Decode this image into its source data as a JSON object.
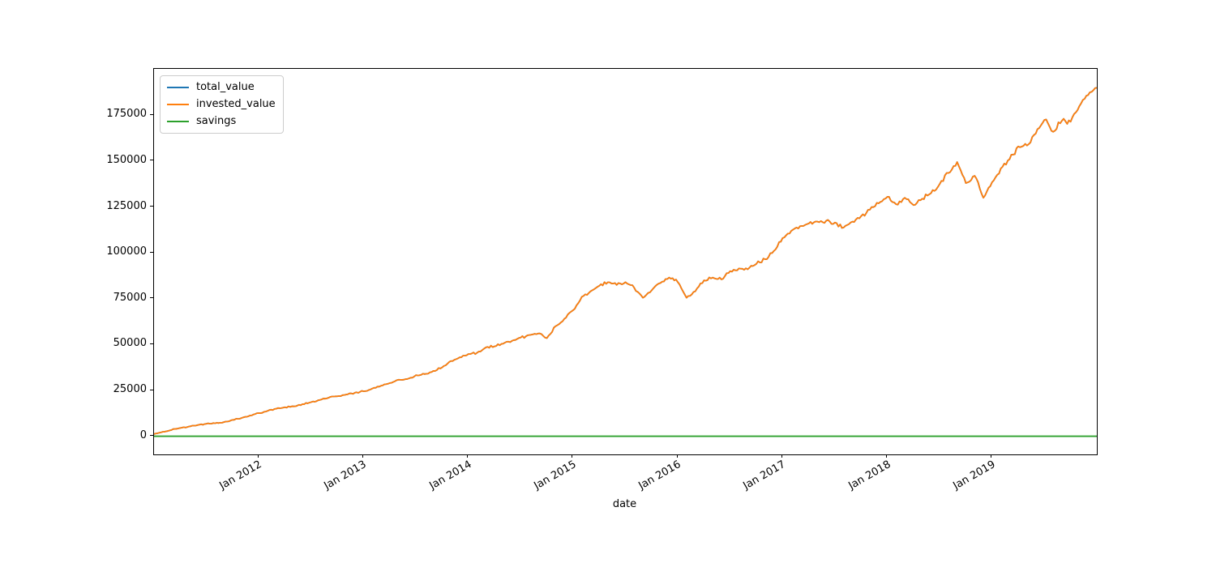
{
  "figure": {
    "background": "#ffffff"
  },
  "chart_data": {
    "type": "line",
    "title": "",
    "xlabel": "date",
    "ylabel": "",
    "grid": false,
    "legend": {
      "position": "upper left",
      "entries": [
        "total_value",
        "invested_value",
        "savings"
      ]
    },
    "axis": {
      "ylim": [
        -9900,
        200300
      ],
      "xlim_years": [
        2011.0,
        2020.0
      ],
      "yticks": [
        0,
        25000,
        50000,
        75000,
        100000,
        125000,
        150000,
        175000
      ],
      "xticks": [
        {
          "year": 2012,
          "label": "Jan 2012"
        },
        {
          "year": 2013,
          "label": "Jan 2013"
        },
        {
          "year": 2014,
          "label": "Jan 2014"
        },
        {
          "year": 2015,
          "label": "Jan 2015"
        },
        {
          "year": 2016,
          "label": "Jan 2016"
        },
        {
          "year": 2017,
          "label": "Jan 2017"
        },
        {
          "year": 2018,
          "label": "Jan 2018"
        },
        {
          "year": 2019,
          "label": "Jan 2019"
        }
      ]
    },
    "series": [
      {
        "name": "total_value",
        "color": "#1f77b4",
        "points": [
          [
            "2011-01",
            1200
          ],
          [
            "2011-02",
            2400
          ],
          [
            "2011-03",
            3400
          ],
          [
            "2011-04",
            4500
          ],
          [
            "2011-05",
            5300
          ],
          [
            "2011-06",
            6100
          ],
          [
            "2011-07",
            6800
          ],
          [
            "2011-08",
            7100
          ],
          [
            "2011-09",
            7700
          ],
          [
            "2011-10",
            8900
          ],
          [
            "2011-11",
            9900
          ],
          [
            "2011-12",
            11300
          ],
          [
            "2012-01",
            12600
          ],
          [
            "2012-02",
            13800
          ],
          [
            "2012-03",
            15000
          ],
          [
            "2012-04",
            15800
          ],
          [
            "2012-05",
            16300
          ],
          [
            "2012-06",
            17500
          ],
          [
            "2012-07",
            18600
          ],
          [
            "2012-08",
            19800
          ],
          [
            "2012-09",
            21000
          ],
          [
            "2012-10",
            21800
          ],
          [
            "2012-11",
            22700
          ],
          [
            "2012-12",
            23700
          ],
          [
            "2013-01",
            24500
          ],
          [
            "2013-02",
            26000
          ],
          [
            "2013-03",
            27500
          ],
          [
            "2013-04",
            29000
          ],
          [
            "2013-05",
            30800
          ],
          [
            "2013-06",
            31200
          ],
          [
            "2013-07",
            33300
          ],
          [
            "2013-08",
            33900
          ],
          [
            "2013-09",
            35600
          ],
          [
            "2013-10",
            37500
          ],
          [
            "2013-11",
            41000
          ],
          [
            "2013-12",
            43000
          ],
          [
            "2014-01",
            44800
          ],
          [
            "2014-02",
            45500
          ],
          [
            "2014-03",
            48400
          ],
          [
            "2014-04",
            49000
          ],
          [
            "2014-05",
            50500
          ],
          [
            "2014-06",
            52000
          ],
          [
            "2014-07",
            53800
          ],
          [
            "2014-08",
            55200
          ],
          [
            "2014-09",
            56000
          ],
          [
            "2014-10",
            53500
          ],
          [
            "2014-11",
            60000
          ],
          [
            "2014-12",
            64000
          ],
          [
            "2015-01",
            68700
          ],
          [
            "2015-02",
            76000
          ],
          [
            "2015-03",
            79000
          ],
          [
            "2015-04",
            82000
          ],
          [
            "2015-05",
            84000
          ],
          [
            "2015-06",
            82500
          ],
          [
            "2015-07",
            84000
          ],
          [
            "2015-08",
            81000
          ],
          [
            "2015-09",
            75500
          ],
          [
            "2015-10",
            79500
          ],
          [
            "2015-11",
            83500
          ],
          [
            "2015-12",
            86500
          ],
          [
            "2016-01",
            84000
          ],
          [
            "2016-02",
            75500
          ],
          [
            "2016-03",
            79000
          ],
          [
            "2016-04",
            85000
          ],
          [
            "2016-05",
            86500
          ],
          [
            "2016-06",
            85500
          ],
          [
            "2016-07",
            90000
          ],
          [
            "2016-08",
            91500
          ],
          [
            "2016-09",
            91000
          ],
          [
            "2016-10",
            94000
          ],
          [
            "2016-11",
            96500
          ],
          [
            "2016-12",
            101000
          ],
          [
            "2017-01",
            108000
          ],
          [
            "2017-02",
            112000
          ],
          [
            "2017-03",
            114500
          ],
          [
            "2017-04",
            116000
          ],
          [
            "2017-05",
            117000
          ],
          [
            "2017-06",
            117500
          ],
          [
            "2017-07",
            116500
          ],
          [
            "2017-08",
            113800
          ],
          [
            "2017-09",
            117000
          ],
          [
            "2017-10",
            120000
          ],
          [
            "2017-11",
            123500
          ],
          [
            "2017-12",
            127000
          ],
          [
            "2018-01",
            130500
          ],
          [
            "2018-02",
            126500
          ],
          [
            "2018-03",
            130000
          ],
          [
            "2018-04",
            126000
          ],
          [
            "2018-05",
            129500
          ],
          [
            "2018-06",
            132500
          ],
          [
            "2018-07",
            137500
          ],
          [
            "2018-08",
            143500
          ],
          [
            "2018-09",
            149500
          ],
          [
            "2018-10",
            138000
          ],
          [
            "2018-11",
            142000
          ],
          [
            "2018-12",
            130000
          ],
          [
            "2019-01",
            138500
          ],
          [
            "2019-02",
            146000
          ],
          [
            "2019-03",
            151000
          ],
          [
            "2019-04",
            158000
          ],
          [
            "2019-05",
            158500
          ],
          [
            "2019-06",
            165000
          ],
          [
            "2019-07",
            172500
          ],
          [
            "2019-08",
            166000
          ],
          [
            "2019-09",
            172000
          ],
          [
            "2019-10",
            171500
          ],
          [
            "2019-11",
            180000
          ],
          [
            "2019-12",
            186000
          ],
          [
            "2020-01",
            190000
          ]
        ]
      },
      {
        "name": "invested_value",
        "color": "#ff7f0e",
        "points": [
          [
            "2011-01",
            1200
          ],
          [
            "2011-02",
            2400
          ],
          [
            "2011-03",
            3400
          ],
          [
            "2011-04",
            4500
          ],
          [
            "2011-05",
            5300
          ],
          [
            "2011-06",
            6100
          ],
          [
            "2011-07",
            6800
          ],
          [
            "2011-08",
            7100
          ],
          [
            "2011-09",
            7700
          ],
          [
            "2011-10",
            8900
          ],
          [
            "2011-11",
            9900
          ],
          [
            "2011-12",
            11300
          ],
          [
            "2012-01",
            12600
          ],
          [
            "2012-02",
            13800
          ],
          [
            "2012-03",
            15000
          ],
          [
            "2012-04",
            15800
          ],
          [
            "2012-05",
            16300
          ],
          [
            "2012-06",
            17500
          ],
          [
            "2012-07",
            18600
          ],
          [
            "2012-08",
            19800
          ],
          [
            "2012-09",
            21000
          ],
          [
            "2012-10",
            21800
          ],
          [
            "2012-11",
            22700
          ],
          [
            "2012-12",
            23700
          ],
          [
            "2013-01",
            24500
          ],
          [
            "2013-02",
            26000
          ],
          [
            "2013-03",
            27500
          ],
          [
            "2013-04",
            29000
          ],
          [
            "2013-05",
            30800
          ],
          [
            "2013-06",
            31200
          ],
          [
            "2013-07",
            33300
          ],
          [
            "2013-08",
            33900
          ],
          [
            "2013-09",
            35600
          ],
          [
            "2013-10",
            37500
          ],
          [
            "2013-11",
            41000
          ],
          [
            "2013-12",
            43000
          ],
          [
            "2014-01",
            44800
          ],
          [
            "2014-02",
            45500
          ],
          [
            "2014-03",
            48400
          ],
          [
            "2014-04",
            49000
          ],
          [
            "2014-05",
            50500
          ],
          [
            "2014-06",
            52000
          ],
          [
            "2014-07",
            53800
          ],
          [
            "2014-08",
            55200
          ],
          [
            "2014-09",
            56000
          ],
          [
            "2014-10",
            53500
          ],
          [
            "2014-11",
            60000
          ],
          [
            "2014-12",
            64000
          ],
          [
            "2015-01",
            68700
          ],
          [
            "2015-02",
            76000
          ],
          [
            "2015-03",
            79000
          ],
          [
            "2015-04",
            82000
          ],
          [
            "2015-05",
            84000
          ],
          [
            "2015-06",
            82500
          ],
          [
            "2015-07",
            84000
          ],
          [
            "2015-08",
            81000
          ],
          [
            "2015-09",
            75500
          ],
          [
            "2015-10",
            79500
          ],
          [
            "2015-11",
            83500
          ],
          [
            "2015-12",
            86500
          ],
          [
            "2016-01",
            84000
          ],
          [
            "2016-02",
            75500
          ],
          [
            "2016-03",
            79000
          ],
          [
            "2016-04",
            85000
          ],
          [
            "2016-05",
            86500
          ],
          [
            "2016-06",
            85500
          ],
          [
            "2016-07",
            90000
          ],
          [
            "2016-08",
            91500
          ],
          [
            "2016-09",
            91000
          ],
          [
            "2016-10",
            94000
          ],
          [
            "2016-11",
            96500
          ],
          [
            "2016-12",
            101000
          ],
          [
            "2017-01",
            108000
          ],
          [
            "2017-02",
            112000
          ],
          [
            "2017-03",
            114500
          ],
          [
            "2017-04",
            116000
          ],
          [
            "2017-05",
            117000
          ],
          [
            "2017-06",
            117500
          ],
          [
            "2017-07",
            116500
          ],
          [
            "2017-08",
            113800
          ],
          [
            "2017-09",
            117000
          ],
          [
            "2017-10",
            120000
          ],
          [
            "2017-11",
            123500
          ],
          [
            "2017-12",
            127000
          ],
          [
            "2018-01",
            130500
          ],
          [
            "2018-02",
            126500
          ],
          [
            "2018-03",
            130000
          ],
          [
            "2018-04",
            126000
          ],
          [
            "2018-05",
            129500
          ],
          [
            "2018-06",
            132500
          ],
          [
            "2018-07",
            137500
          ],
          [
            "2018-08",
            143500
          ],
          [
            "2018-09",
            149500
          ],
          [
            "2018-10",
            138000
          ],
          [
            "2018-11",
            142000
          ],
          [
            "2018-12",
            130000
          ],
          [
            "2019-01",
            138500
          ],
          [
            "2019-02",
            146000
          ],
          [
            "2019-03",
            151000
          ],
          [
            "2019-04",
            158000
          ],
          [
            "2019-05",
            158500
          ],
          [
            "2019-06",
            165000
          ],
          [
            "2019-07",
            172500
          ],
          [
            "2019-08",
            166000
          ],
          [
            "2019-09",
            172000
          ],
          [
            "2019-10",
            171500
          ],
          [
            "2019-11",
            180000
          ],
          [
            "2019-12",
            186000
          ],
          [
            "2020-01",
            190000
          ]
        ]
      },
      {
        "name": "savings",
        "color": "#2ca02c",
        "points": [
          [
            "2011-01",
            0
          ],
          [
            "2020-01",
            0
          ]
        ]
      }
    ]
  }
}
